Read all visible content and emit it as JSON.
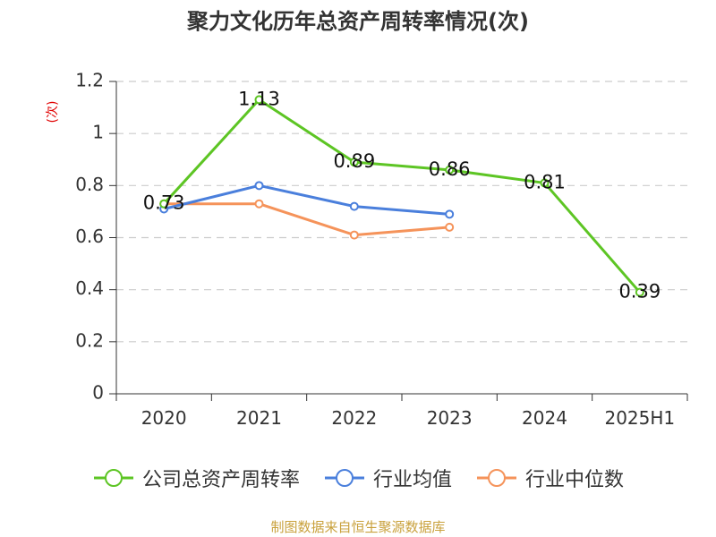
{
  "chart_data": {
    "type": "line",
    "title": "聚力文化历年总资产周转率情况(次)",
    "ylabel": "(次)",
    "categories": [
      "2020",
      "2021",
      "2022",
      "2023",
      "2024",
      "2025H1"
    ],
    "ylim": [
      0,
      1.2
    ],
    "yticks": [
      0,
      0.2,
      0.4,
      0.6,
      0.8,
      1,
      1.2
    ],
    "ytick_labels": [
      "0",
      "0.2",
      "0.4",
      "0.6",
      "0.8",
      "1",
      "1.2"
    ],
    "grid": true,
    "legend_position": "bottom",
    "series": [
      {
        "name": "公司总资产周转率",
        "color": "#5dc524",
        "values": [
          0.73,
          1.13,
          0.89,
          0.86,
          0.81,
          0.39
        ],
        "labels": [
          "0.73",
          "1.13",
          "0.89",
          "0.86",
          "0.81",
          "0.39"
        ]
      },
      {
        "name": "行业均值",
        "color": "#4a7fdc",
        "values": [
          0.71,
          0.8,
          0.72,
          0.69,
          null,
          null
        ]
      },
      {
        "name": "行业中位数",
        "color": "#f5935a",
        "values": [
          0.73,
          0.73,
          0.61,
          0.64,
          null,
          null
        ]
      }
    ]
  },
  "source": "制图数据来自恒生聚源数据库"
}
